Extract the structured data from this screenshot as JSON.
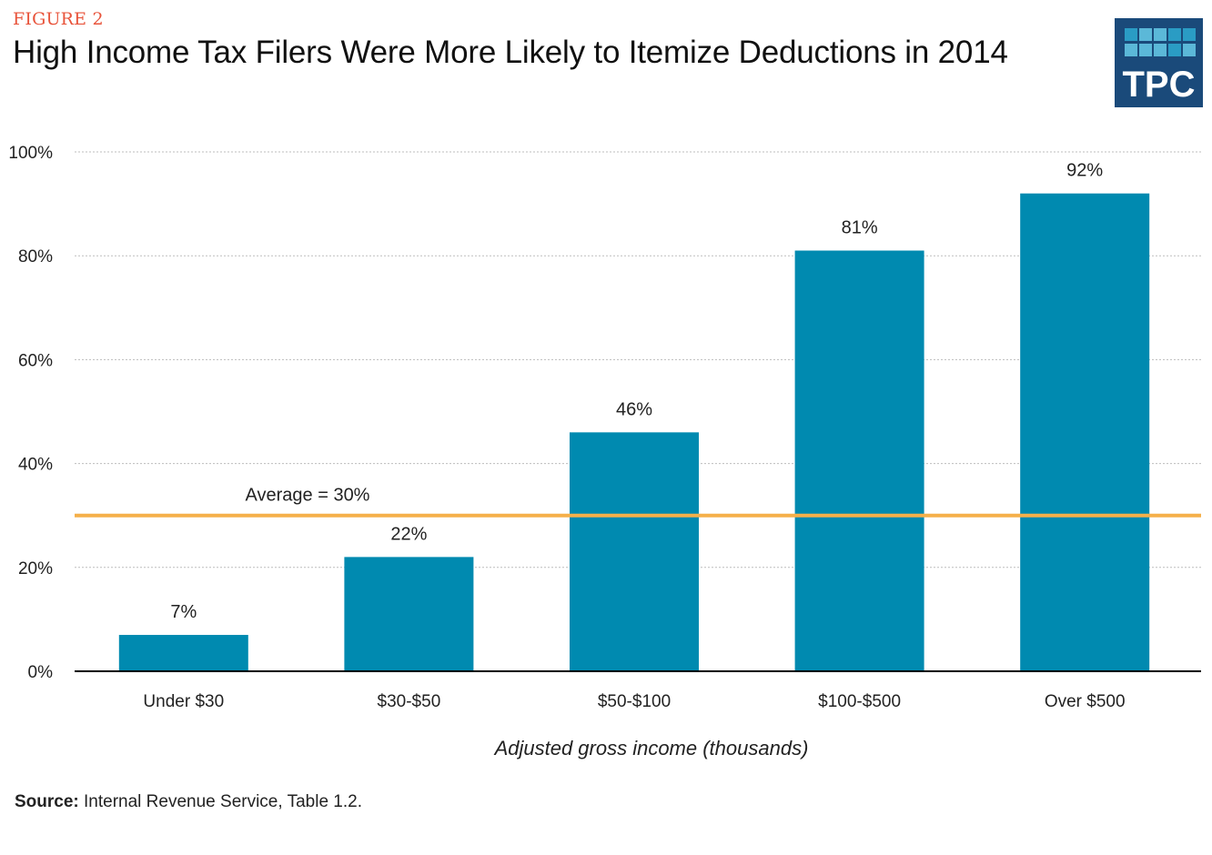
{
  "figure_label": "FIGURE 2",
  "title": "High Income Tax Filers Were More Likely to Itemize Deductions in 2014",
  "logo": {
    "text": "TPC",
    "colors": {
      "background": "#1a4a7a",
      "light": "#5bb8d8",
      "mid": "#2a9cc4"
    }
  },
  "source": {
    "label": "Source:",
    "text": "Internal Revenue Service, Table 1.2."
  },
  "chart_data": {
    "type": "bar",
    "title": "High Income Tax Filers Were More Likely to Itemize Deductions in 2014",
    "xlabel": "Adjusted gross income (thousands)",
    "ylabel": "",
    "categories": [
      "Under $30",
      "$30-$50",
      "$50-$100",
      "$100-$500",
      "Over $500"
    ],
    "values": [
      7,
      22,
      46,
      81,
      92
    ],
    "value_labels": [
      "7%",
      "22%",
      "46%",
      "81%",
      "92%"
    ],
    "ylim": [
      0,
      100
    ],
    "yticks": [
      0,
      20,
      40,
      60,
      80,
      100
    ],
    "ytick_labels": [
      "0%",
      "20%",
      "40%",
      "60%",
      "80%",
      "100%"
    ],
    "grid": true,
    "reference_line": {
      "value": 30,
      "label": "Average  = 30%",
      "color": "#f5b04a"
    },
    "bar_color": "#008ab0"
  }
}
